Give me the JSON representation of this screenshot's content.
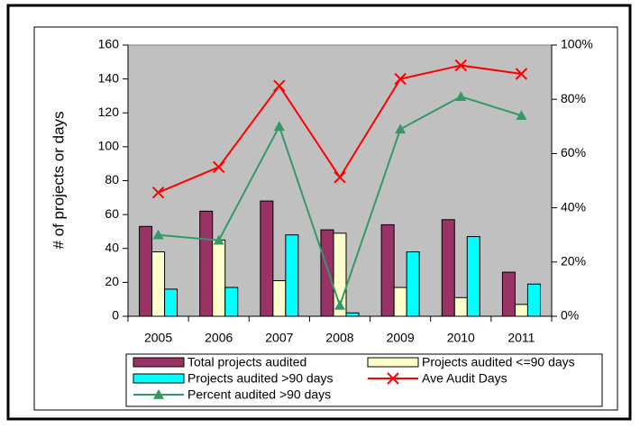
{
  "chart_data": {
    "type": "bar-line",
    "y_label": "# of projects or days",
    "categories": [
      "2005",
      "2006",
      "2007",
      "2008",
      "2009",
      "2010",
      "2011"
    ],
    "ylim": [
      0,
      160
    ],
    "yticks": [
      0,
      20,
      40,
      60,
      80,
      100,
      120,
      140,
      160
    ],
    "y2lim": [
      0,
      100
    ],
    "y2ticks": [
      {
        "value": 0,
        "label": "0%"
      },
      {
        "value": 20,
        "label": "20%"
      },
      {
        "value": 40,
        "label": "40%"
      },
      {
        "value": 60,
        "label": "60%"
      },
      {
        "value": 80,
        "label": "80%"
      },
      {
        "value": 100,
        "label": "100%"
      }
    ],
    "grid": false,
    "plot_background": "#c0c0c0",
    "series": [
      {
        "name": "Total projects audited",
        "type": "bar",
        "color": "#993366",
        "values": [
          53,
          62,
          68,
          51,
          54,
          57,
          26
        ]
      },
      {
        "name": "Projects audited <=90 days",
        "type": "bar",
        "color": "#ffffcc",
        "values": [
          38,
          45,
          21,
          49,
          17,
          11,
          7
        ]
      },
      {
        "name": "Projects audited >90 days",
        "type": "bar",
        "color": "#00ffff",
        "values": [
          16,
          17,
          48,
          2,
          38,
          47,
          19
        ]
      },
      {
        "name": "Ave Audit Days",
        "type": "line",
        "marker": "x",
        "color": "#ff0000",
        "values": [
          73,
          88,
          136,
          82,
          140,
          148,
          143
        ]
      },
      {
        "name": "Percent audited >90 days",
        "type": "line",
        "marker": "triangle",
        "color": "#339966",
        "axis": "y2",
        "values": [
          30,
          28,
          70,
          4,
          69,
          81,
          74
        ]
      }
    ]
  }
}
